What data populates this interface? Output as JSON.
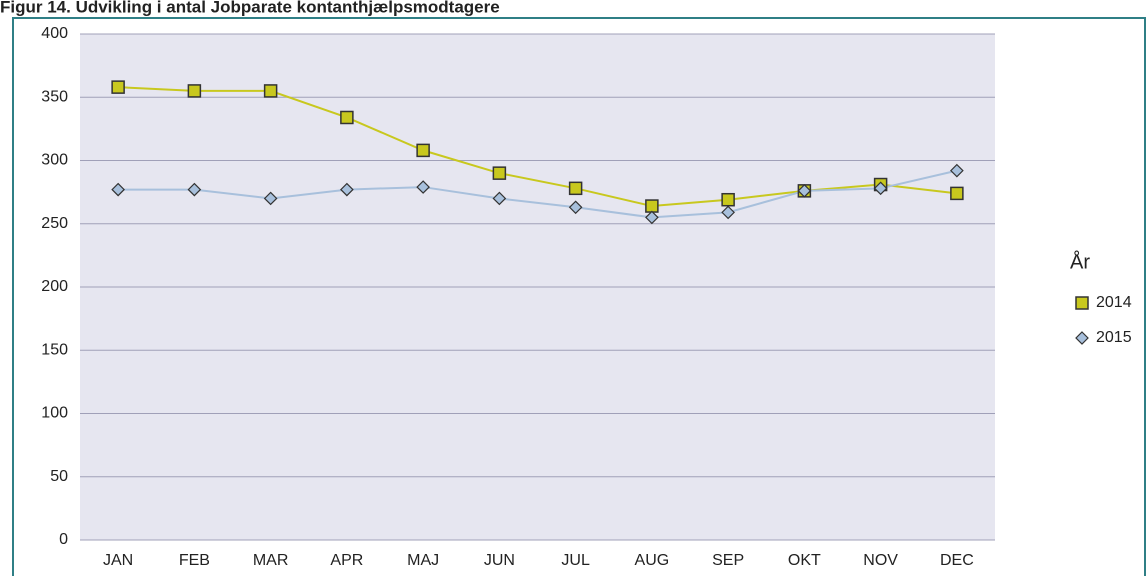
{
  "chart_data": {
    "type": "line",
    "title": "Figur 14. Udvikling i antal Jobparate kontanthjælpsmodtagere",
    "categories": [
      "JAN",
      "FEB",
      "MAR",
      "APR",
      "MAJ",
      "JUN",
      "JUL",
      "AUG",
      "SEP",
      "OKT",
      "NOV",
      "DEC"
    ],
    "series": [
      {
        "name": "2014",
        "color": "#c8c81e",
        "marker": "square",
        "values": [
          358,
          355,
          355,
          334,
          308,
          290,
          278,
          264,
          269,
          276,
          281,
          274
        ]
      },
      {
        "name": "2015",
        "color": "#a8c0dc",
        "marker": "diamond",
        "values": [
          277,
          277,
          270,
          277,
          279,
          270,
          263,
          255,
          259,
          276,
          278,
          292
        ]
      }
    ],
    "ylim": [
      0,
      400
    ],
    "yticks": [
      0,
      50,
      100,
      150,
      200,
      250,
      300,
      350,
      400
    ],
    "grid": true,
    "legend_title": "År",
    "legend_position": "right"
  }
}
